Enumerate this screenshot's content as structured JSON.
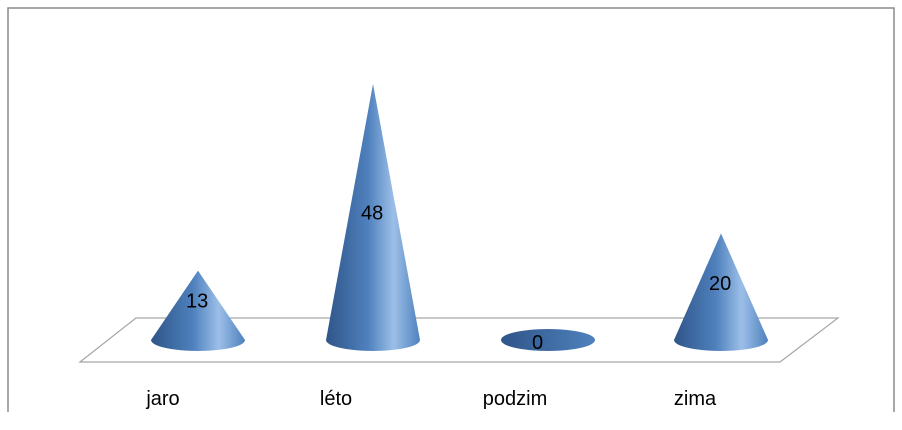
{
  "chart_data": {
    "type": "bar",
    "shape": "cone-3d",
    "categories": [
      "jaro",
      "léto",
      "podzim",
      "zima"
    ],
    "values": [
      13,
      48,
      0,
      20
    ],
    "data_labels": [
      "13",
      "48",
      "0",
      "20"
    ],
    "ylim": [
      0,
      48
    ],
    "grid": false,
    "legend": "none",
    "colors": {
      "cone_dark": "#2f5589",
      "cone_mid": "#4f81bd",
      "cone_light": "#9cbfe8",
      "floor_stroke": "#a6a6a6",
      "frame_stroke": "#8c8c8c"
    }
  }
}
